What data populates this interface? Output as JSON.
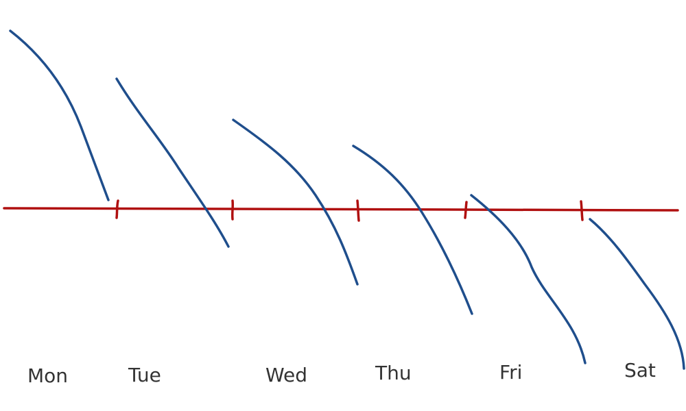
{
  "labels": [
    "Mon",
    "Tue",
    "Wed",
    "Thu",
    "Fri",
    "Sat"
  ]
}
